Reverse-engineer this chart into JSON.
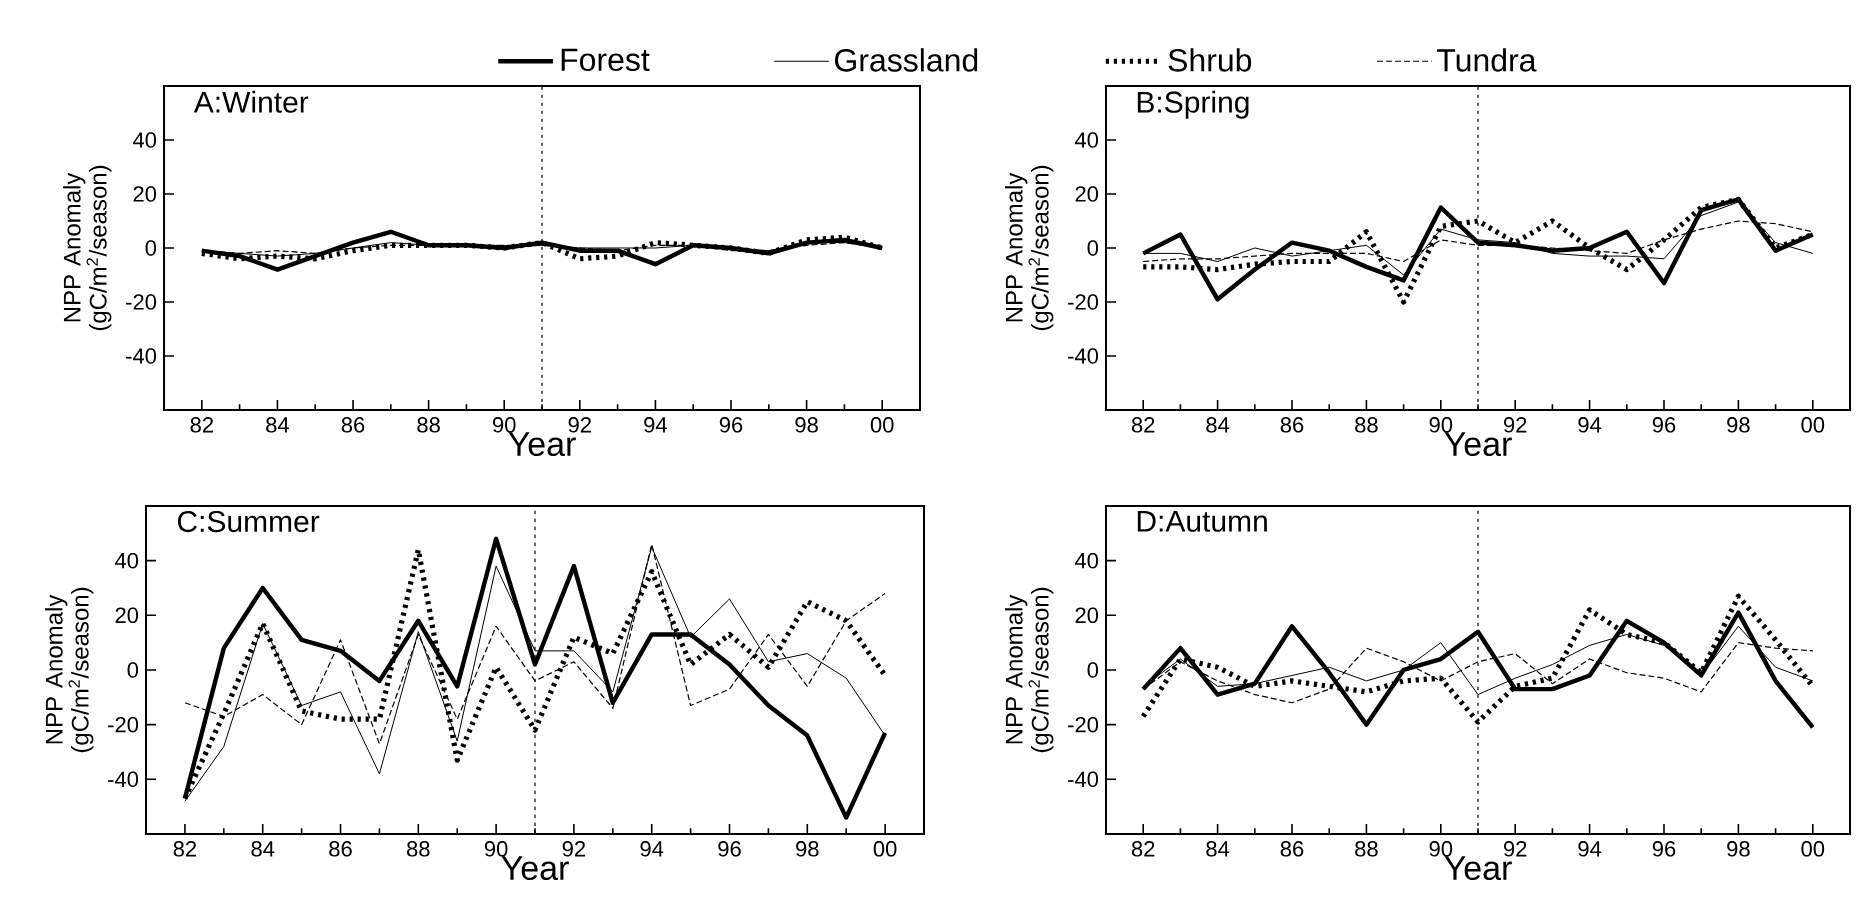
{
  "chart_data": [
    {
      "type": "line",
      "title": "A:Winter",
      "xlabel": "Year",
      "ylabel": "NPP Anomaly (gC/m$^{2}$/season)",
      "legend": "top",
      "x": [
        "1982",
        "1983",
        "1984",
        "1985",
        "1986",
        "1987",
        "1988",
        "1989",
        "1990",
        "1991",
        "1992",
        "1993",
        "1994",
        "1995",
        "1996",
        "1997",
        "1998",
        "1999",
        "2000"
      ],
      "xlim": [
        "1981",
        "2001"
      ],
      "xticks": [
        {
          "value": "1982",
          "label": "82"
        },
        {
          "value": "1984",
          "label": "84"
        },
        {
          "value": "1986",
          "label": "86"
        },
        {
          "value": "1988",
          "label": "88"
        },
        {
          "value": "1990",
          "label": "90"
        },
        {
          "value": "1992",
          "label": "92"
        },
        {
          "value": "1994",
          "label": "94"
        },
        {
          "value": "1996",
          "label": "96"
        },
        {
          "value": "1998",
          "label": "98"
        },
        {
          "value": "2000",
          "label": "00"
        }
      ],
      "ylim": [
        -60,
        60
      ],
      "yticks": [
        -40,
        -20,
        0,
        20,
        40
      ],
      "ref_lines": [
        {
          "axis": "x",
          "value": "1991",
          "line_style": "dotted"
        }
      ],
      "series": [
        {
          "name": "Forest",
          "color": "#000000",
          "line_style": "solid",
          "values": [
            -1,
            -3,
            -8,
            -3,
            2,
            6,
            1,
            1,
            0,
            2,
            -1,
            -1,
            -6,
            1,
            0,
            -2,
            2,
            3,
            0
          ]
        },
        {
          "name": "Grassland",
          "color": "#000000",
          "line_style": "solid",
          "values": [
            -1,
            -2,
            -3,
            -2,
            0,
            2,
            1,
            1,
            0,
            1,
            0,
            0,
            0,
            1,
            0,
            -1,
            2,
            2,
            0
          ]
        },
        {
          "name": "Shrub",
          "color": "#000000",
          "line_style": "dotted",
          "values": [
            -2,
            -4,
            -3,
            -4,
            -1,
            1,
            1,
            1,
            0,
            2,
            -4,
            -3,
            2,
            1,
            0,
            -2,
            3,
            4,
            0
          ]
        },
        {
          "name": "Tundra",
          "color": "#000000",
          "line_style": "dashed",
          "values": [
            -1,
            -2,
            -1,
            -2,
            0,
            1,
            1,
            1,
            1,
            1,
            0,
            -1,
            1,
            1,
            -1,
            -1,
            1,
            2,
            0
          ]
        }
      ]
    },
    {
      "type": "line",
      "title": "B:Spring",
      "xlabel": "Year",
      "ylabel": "NPP Anomaly (gC/m$^{2}$/season)",
      "x": [
        "1982",
        "1983",
        "1984",
        "1985",
        "1986",
        "1987",
        "1988",
        "1989",
        "1990",
        "1991",
        "1992",
        "1993",
        "1994",
        "1995",
        "1996",
        "1997",
        "1998",
        "1999",
        "2000"
      ],
      "xlim": [
        "1981",
        "2001"
      ],
      "xticks": [
        {
          "value": "1982",
          "label": "82"
        },
        {
          "value": "1984",
          "label": "84"
        },
        {
          "value": "1986",
          "label": "86"
        },
        {
          "value": "1988",
          "label": "88"
        },
        {
          "value": "1990",
          "label": "90"
        },
        {
          "value": "1992",
          "label": "92"
        },
        {
          "value": "1994",
          "label": "94"
        },
        {
          "value": "1996",
          "label": "96"
        },
        {
          "value": "1998",
          "label": "98"
        },
        {
          "value": "2000",
          "label": "00"
        }
      ],
      "ylim": [
        -60,
        60
      ],
      "yticks": [
        -40,
        -20,
        0,
        20,
        40
      ],
      "ref_lines": [
        {
          "axis": "x",
          "value": "1991",
          "line_style": "dotted"
        }
      ],
      "series": [
        {
          "color": "#000000",
          "line_style": "solid",
          "values": [
            -2,
            5,
            -19,
            -8,
            2,
            -1,
            -7,
            -12,
            15,
            2,
            1,
            -1,
            0,
            6,
            -13,
            14,
            18,
            -1,
            5
          ]
        },
        {
          "color": "#000000",
          "line_style": "solid",
          "values": [
            -2,
            -2,
            -5,
            0,
            -3,
            -1,
            1,
            -10,
            7,
            3,
            2,
            -2,
            -3,
            -3,
            -4,
            12,
            17,
            2,
            -2
          ]
        },
        {
          "color": "#000000",
          "line_style": "dotted",
          "values": [
            -7,
            -7,
            -8,
            -6,
            -5,
            -5,
            6,
            -20,
            8,
            10,
            2,
            10,
            0,
            -8,
            3,
            15,
            18,
            0,
            5
          ]
        },
        {
          "color": "#000000",
          "line_style": "dashed",
          "values": [
            -5,
            -4,
            -4,
            -3,
            -2,
            -2,
            -2,
            -5,
            3,
            1,
            1,
            0,
            -1,
            -2,
            3,
            7,
            10,
            9,
            6
          ]
        }
      ]
    },
    {
      "type": "line",
      "title": "C:Summer",
      "xlabel": "Year",
      "ylabel": "NPP Anomaly (gC/m$^{2}$/season)",
      "x": [
        "1982",
        "1983",
        "1984",
        "1985",
        "1986",
        "1987",
        "1988",
        "1989",
        "1990",
        "1991",
        "1992",
        "1993",
        "1994",
        "1995",
        "1996",
        "1997",
        "1998",
        "1999",
        "2000"
      ],
      "xlim": [
        "1981",
        "2001"
      ],
      "xticks": [
        {
          "value": "1982",
          "label": "82"
        },
        {
          "value": "1984",
          "label": "84"
        },
        {
          "value": "1986",
          "label": "86"
        },
        {
          "value": "1988",
          "label": "88"
        },
        {
          "value": "1990",
          "label": "90"
        },
        {
          "value": "1992",
          "label": "92"
        },
        {
          "value": "1994",
          "label": "94"
        },
        {
          "value": "1996",
          "label": "96"
        },
        {
          "value": "1998",
          "label": "98"
        },
        {
          "value": "2000",
          "label": "00"
        }
      ],
      "ylim": [
        -60,
        60
      ],
      "yticks": [
        -40,
        -20,
        0,
        20,
        40
      ],
      "ref_lines": [
        {
          "axis": "x",
          "value": "1991",
          "line_style": "dotted"
        }
      ],
      "series": [
        {
          "color": "#000000",
          "line_style": "solid",
          "values": [
            -47,
            8,
            30,
            11,
            7,
            -4,
            18,
            -6,
            48,
            2,
            38,
            -12,
            13,
            13,
            2,
            -13,
            -24,
            -54,
            -23
          ]
        },
        {
          "color": "#000000",
          "line_style": "solid",
          "values": [
            -48,
            -28,
            17,
            -13,
            -8,
            -38,
            14,
            -26,
            38,
            7,
            7,
            -8,
            45,
            12,
            26,
            3,
            6,
            -3,
            -24
          ]
        },
        {
          "color": "#000000",
          "line_style": "dotted",
          "values": [
            -47,
            -16,
            17,
            -15,
            -18,
            -18,
            44,
            -33,
            1,
            -22,
            12,
            6,
            36,
            2,
            13,
            1,
            25,
            18,
            -2
          ]
        },
        {
          "color": "#000000",
          "line_style": "dashed",
          "values": [
            -12,
            -17,
            -9,
            -20,
            11,
            -27,
            13,
            -18,
            16,
            -4,
            3,
            -14,
            46,
            -13,
            -7,
            13,
            -6,
            18,
            28
          ]
        }
      ]
    },
    {
      "type": "line",
      "title": "D:Autumn",
      "xlabel": "Year",
      "ylabel": "NPP Anomaly (gC/m$^{2}$/season)",
      "x": [
        "1982",
        "1983",
        "1984",
        "1985",
        "1986",
        "1987",
        "1988",
        "1989",
        "1990",
        "1991",
        "1992",
        "1993",
        "1994",
        "1995",
        "1996",
        "1997",
        "1998",
        "1999",
        "2000"
      ],
      "xlim": [
        "1981",
        "2001"
      ],
      "xticks": [
        {
          "value": "1982",
          "label": "82"
        },
        {
          "value": "1984",
          "label": "84"
        },
        {
          "value": "1986",
          "label": "86"
        },
        {
          "value": "1988",
          "label": "88"
        },
        {
          "value": "1990",
          "label": "90"
        },
        {
          "value": "1992",
          "label": "92"
        },
        {
          "value": "1994",
          "label": "94"
        },
        {
          "value": "1996",
          "label": "96"
        },
        {
          "value": "1998",
          "label": "98"
        },
        {
          "value": "2000",
          "label": "00"
        }
      ],
      "ylim": [
        -60,
        60
      ],
      "yticks": [
        -40,
        -20,
        0,
        20,
        40
      ],
      "ref_lines": [
        {
          "axis": "x",
          "value": "1991",
          "line_style": "dotted"
        }
      ],
      "series": [
        {
          "color": "#000000",
          "line_style": "solid",
          "values": [
            -7,
            8,
            -9,
            -5,
            16,
            -1,
            -20,
            0,
            4,
            14,
            -7,
            -7,
            -2,
            18,
            10,
            -2,
            21,
            -4,
            -21
          ]
        },
        {
          "color": "#000000",
          "line_style": "solid",
          "values": [
            -6,
            4,
            -6,
            -5,
            -2,
            1,
            -4,
            0,
            10,
            -9,
            -3,
            2,
            9,
            13,
            9,
            -2,
            16,
            1,
            -4
          ]
        },
        {
          "color": "#000000",
          "line_style": "dotted",
          "values": [
            -17,
            4,
            1,
            -6,
            -4,
            -6,
            -8,
            -4,
            -3,
            -19,
            -6,
            -3,
            22,
            13,
            10,
            -1,
            27,
            11,
            -6
          ]
        },
        {
          "color": "#000000",
          "line_style": "dashed",
          "values": [
            -7,
            3,
            -4,
            -9,
            -12,
            -7,
            8,
            3,
            -4,
            3,
            6,
            -5,
            4,
            -1,
            -3,
            -8,
            10,
            8,
            7
          ]
        }
      ]
    }
  ]
}
